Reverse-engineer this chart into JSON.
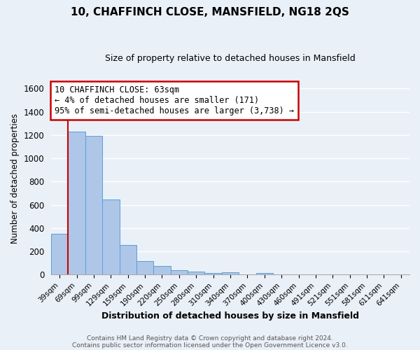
{
  "title": "10, CHAFFINCH CLOSE, MANSFIELD, NG18 2QS",
  "subtitle": "Size of property relative to detached houses in Mansfield",
  "xlabel": "Distribution of detached houses by size in Mansfield",
  "ylabel": "Number of detached properties",
  "bin_labels": [
    "39sqm",
    "69sqm",
    "99sqm",
    "129sqm",
    "159sqm",
    "190sqm",
    "220sqm",
    "250sqm",
    "280sqm",
    "310sqm",
    "340sqm",
    "370sqm",
    "400sqm",
    "430sqm",
    "460sqm",
    "491sqm",
    "521sqm",
    "551sqm",
    "581sqm",
    "611sqm",
    "641sqm"
  ],
  "bar_values": [
    350,
    1230,
    1195,
    645,
    255,
    115,
    75,
    40,
    25,
    15,
    20,
    0,
    15,
    0,
    0,
    0,
    0,
    0,
    0,
    0,
    0
  ],
  "bar_color": "#aec6e8",
  "bar_edge_color": "#5a9fd4",
  "vline_color": "#cc0000",
  "box_text_line1": "10 CHAFFINCH CLOSE: 63sqm",
  "box_text_line2": "← 4% of detached houses are smaller (171)",
  "box_text_line3": "95% of semi-detached houses are larger (3,738) →",
  "box_color": "white",
  "box_edge_color": "#cc0000",
  "ylim": [
    0,
    1650
  ],
  "yticks": [
    0,
    200,
    400,
    600,
    800,
    1000,
    1200,
    1400,
    1600
  ],
  "footer_line1": "Contains HM Land Registry data © Crown copyright and database right 2024.",
  "footer_line2": "Contains public sector information licensed under the Open Government Licence v3.0.",
  "background_color": "#eaf0f8",
  "grid_color": "white"
}
